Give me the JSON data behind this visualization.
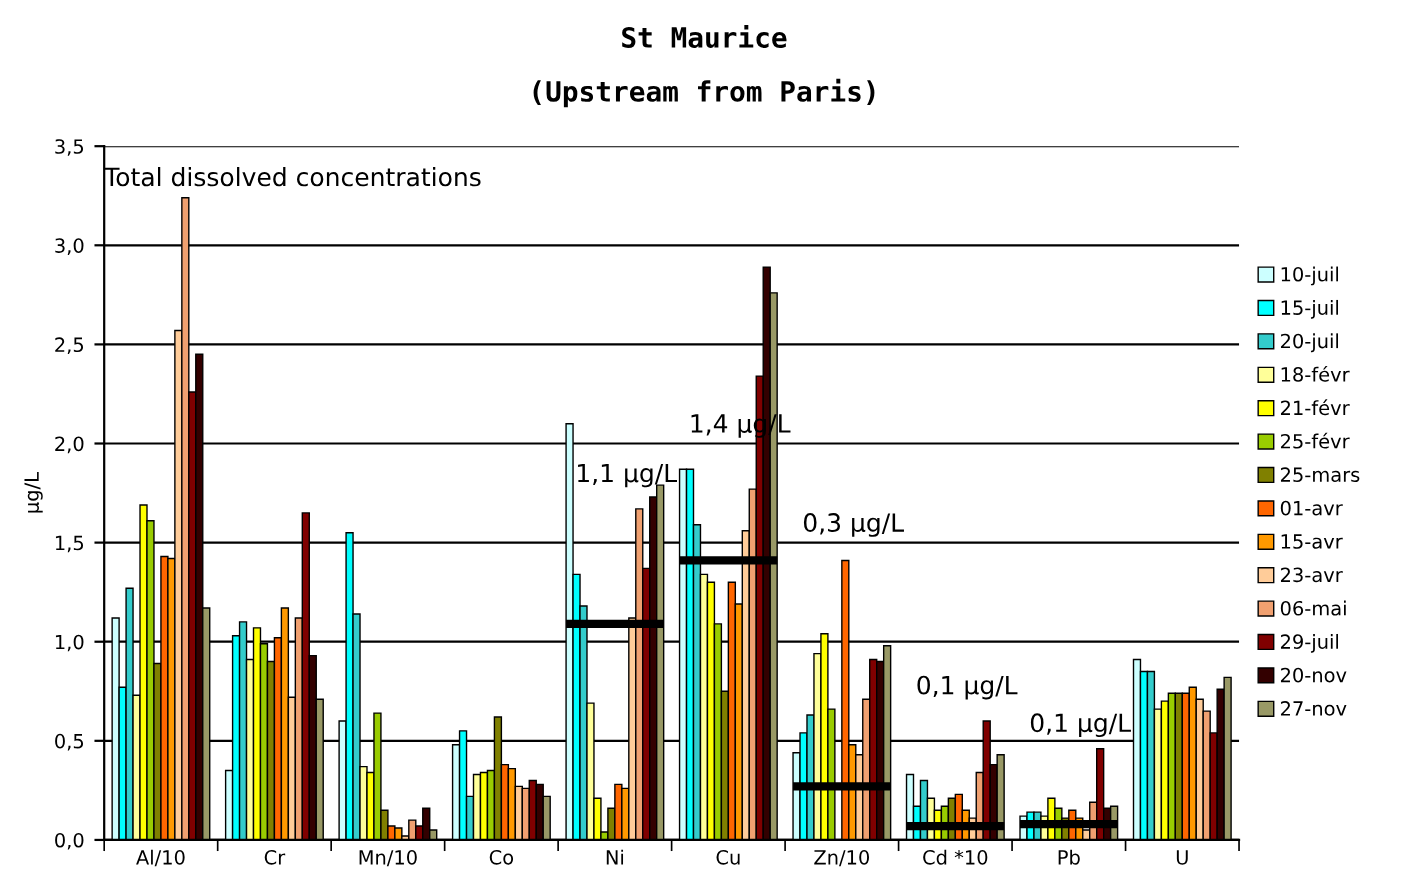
{
  "chart_data": {
    "type": "bar",
    "title": "St Maurice",
    "subtitle": "(Upstream from Paris)",
    "ylabel": "µg/L",
    "categories": [
      "Al/10",
      "Cr",
      "Mn/10",
      "Co",
      "Ni",
      "Cu",
      "Zn/10",
      "Cd *10",
      "Pb",
      "U"
    ],
    "ylim": [
      0,
      3.5
    ],
    "yticks": [
      {
        "value": 0,
        "label": "0,0"
      },
      {
        "value": 0.5,
        "label": "0,5"
      },
      {
        "value": 1,
        "label": "1,0"
      },
      {
        "value": 1.5,
        "label": "1,5"
      },
      {
        "value": 2,
        "label": "2,0"
      },
      {
        "value": 2.5,
        "label": "2,5"
      },
      {
        "value": 3,
        "label": "3,0"
      },
      {
        "value": 3.5,
        "label": "3,5"
      }
    ],
    "grid": "y",
    "legend": "right",
    "annotations": [
      "Total dissolved concentrations",
      "1,1 µg/L",
      "1,4 µg/L",
      "0,3 µg/L",
      "0,1 µg/L",
      "0,1 µg/L"
    ],
    "ref_lines": [
      {
        "axis": "y",
        "value": 1.09,
        "color": "#000000"
      },
      {
        "axis": "y",
        "value": 1.41,
        "color": "#000000"
      },
      {
        "axis": "y",
        "value": 0.27,
        "color": "#000000"
      },
      {
        "axis": "y",
        "value": 0.07,
        "color": "#000000"
      },
      {
        "axis": "y",
        "value": 0.08,
        "color": "#000000"
      }
    ],
    "series": [
      {
        "name": "10-juil",
        "color": "#ccffff",
        "values": [
          1.12,
          0.35,
          0.6,
          0.48,
          2.1,
          1.87,
          0.44,
          0.33,
          0.12,
          0.91
        ]
      },
      {
        "name": "15-juil",
        "color": "#00ffff",
        "values": [
          0.77,
          1.03,
          1.55,
          0.55,
          1.34,
          1.87,
          0.54,
          0.17,
          0.14,
          0.85
        ]
      },
      {
        "name": "20-juil",
        "color": "#33cccc",
        "values": [
          1.27,
          1.1,
          1.14,
          0.22,
          1.18,
          1.59,
          0.63,
          0.3,
          0.14,
          0.85
        ]
      },
      {
        "name": "18-févr",
        "color": "#ffff99",
        "values": [
          0.73,
          0.91,
          0.37,
          0.33,
          0.69,
          1.34,
          0.94,
          0.21,
          0.12,
          0.66
        ]
      },
      {
        "name": "21-févr",
        "color": "#ffff00",
        "values": [
          1.69,
          1.07,
          0.34,
          0.34,
          0.21,
          1.3,
          1.04,
          0.15,
          0.21,
          0.7
        ]
      },
      {
        "name": "25-févr",
        "color": "#99cc00",
        "values": [
          1.61,
          0.99,
          0.64,
          0.35,
          0.04,
          1.09,
          0.66,
          0.17,
          0.16,
          0.74
        ]
      },
      {
        "name": "25-mars",
        "color": "#808000",
        "values": [
          0.89,
          0.9,
          0.15,
          0.62,
          0.16,
          0.75,
          null,
          0.21,
          0.11,
          0.74
        ]
      },
      {
        "name": "01-avr",
        "color": "#ff6600",
        "values": [
          1.43,
          1.02,
          0.07,
          0.38,
          0.28,
          1.3,
          1.41,
          0.23,
          0.15,
          0.74
        ]
      },
      {
        "name": "15-avr",
        "color": "#ff9900",
        "values": [
          1.42,
          1.17,
          0.06,
          0.36,
          0.26,
          1.19,
          0.48,
          0.15,
          0.11,
          0.77
        ]
      },
      {
        "name": "23-avr",
        "color": "#ffcc99",
        "values": [
          2.57,
          0.72,
          0.02,
          0.27,
          1.12,
          1.56,
          0.43,
          0.11,
          0.05,
          0.71
        ]
      },
      {
        "name": "06-mai",
        "color": "#f0a070",
        "values": [
          3.24,
          1.12,
          0.1,
          0.26,
          1.67,
          1.77,
          0.71,
          0.34,
          0.19,
          0.65
        ]
      },
      {
        "name": "29-juil",
        "color": "#800000",
        "values": [
          2.26,
          1.65,
          0.07,
          0.3,
          1.37,
          2.34,
          0.91,
          0.6,
          0.46,
          0.54
        ]
      },
      {
        "name": "20-nov",
        "color": "#330000",
        "values": [
          2.45,
          0.93,
          0.16,
          0.28,
          1.73,
          2.89,
          0.9,
          0.38,
          0.16,
          0.76
        ]
      },
      {
        "name": "27-nov",
        "color": "#999966",
        "values": [
          1.17,
          0.71,
          0.05,
          0.22,
          1.79,
          2.76,
          0.98,
          0.43,
          0.17,
          0.82
        ]
      }
    ]
  }
}
